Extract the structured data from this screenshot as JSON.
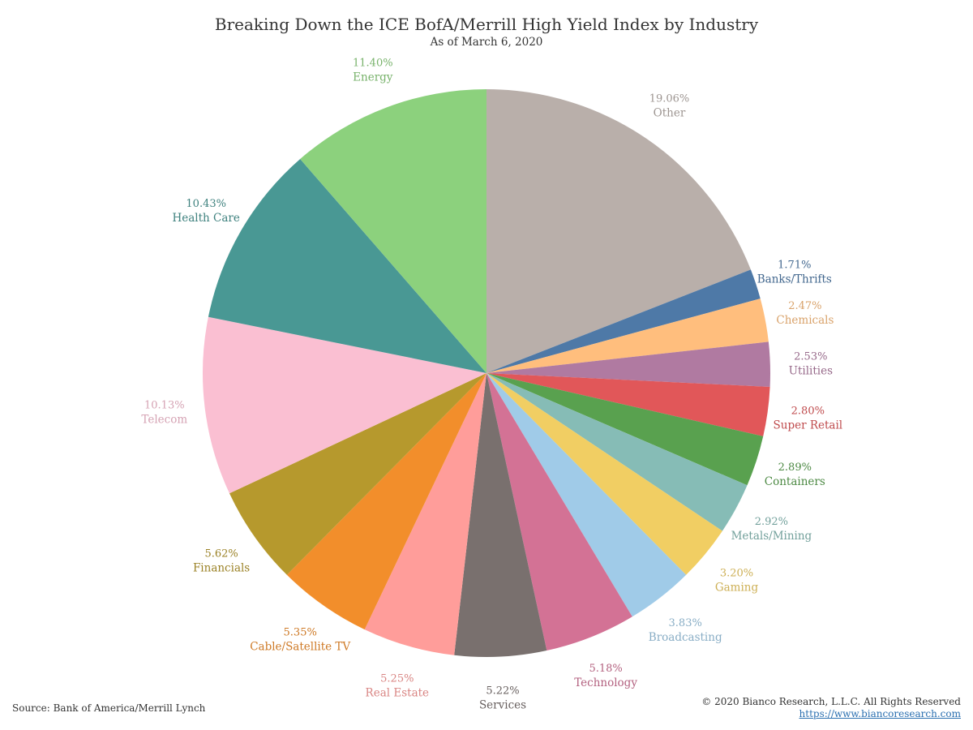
{
  "title": "Breaking Down the ICE BofA/Merrill High Yield Index by Industry",
  "subtitle": "As of March 6, 2020",
  "source": "Source: Bank of America/Merrill Lynch",
  "copyright": "© 2020 Bianco Research, L.L.C. All Rights Reserved",
  "website": "https://www.biancoresearch.com",
  "chart_data": {
    "type": "pie",
    "start_angle_deg": 0,
    "direction": "clockwise",
    "slices": [
      {
        "label": "Other",
        "value": 19.06,
        "pct_label": "19.06%",
        "color": "#b9afaa"
      },
      {
        "label": "Banks/Thrifts",
        "value": 1.71,
        "pct_label": "1.71%",
        "color": "#4e79a7"
      },
      {
        "label": "Chemicals",
        "value": 2.47,
        "pct_label": "2.47%",
        "color": "#ffbe7d"
      },
      {
        "label": "Utilities",
        "value": 2.53,
        "pct_label": "2.53%",
        "color": "#b07aa1"
      },
      {
        "label": "Super Retail",
        "value": 2.8,
        "pct_label": "2.80%",
        "color": "#e15759"
      },
      {
        "label": "Containers",
        "value": 2.89,
        "pct_label": "2.89%",
        "color": "#59a14f"
      },
      {
        "label": "Metals/Mining",
        "value": 2.92,
        "pct_label": "2.92%",
        "color": "#86bcb6"
      },
      {
        "label": "Gaming",
        "value": 3.2,
        "pct_label": "3.20%",
        "color": "#f1ce63"
      },
      {
        "label": "Broadcasting",
        "value": 3.83,
        "pct_label": "3.83%",
        "color": "#a0cbe8"
      },
      {
        "label": "Technology",
        "value": 5.18,
        "pct_label": "5.18%",
        "color": "#d37295"
      },
      {
        "label": "Services",
        "value": 5.22,
        "pct_label": "5.22%",
        "color": "#79706e"
      },
      {
        "label": "Real Estate",
        "value": 5.25,
        "pct_label": "5.25%",
        "color": "#ff9d9a"
      },
      {
        "label": "Cable/Satellite TV",
        "value": 5.35,
        "pct_label": "5.35%",
        "color": "#f28e2b"
      },
      {
        "label": "Financials",
        "value": 5.62,
        "pct_label": "5.62%",
        "color": "#b6992d"
      },
      {
        "label": "Telecom",
        "value": 10.13,
        "pct_label": "10.13%",
        "color": "#fabfd2"
      },
      {
        "label": "Health Care",
        "value": 10.43,
        "pct_label": "10.43%",
        "color": "#499894"
      },
      {
        "label": "Energy",
        "value": 11.4,
        "pct_label": "11.40%",
        "color": "#8cd17d"
      }
    ]
  }
}
